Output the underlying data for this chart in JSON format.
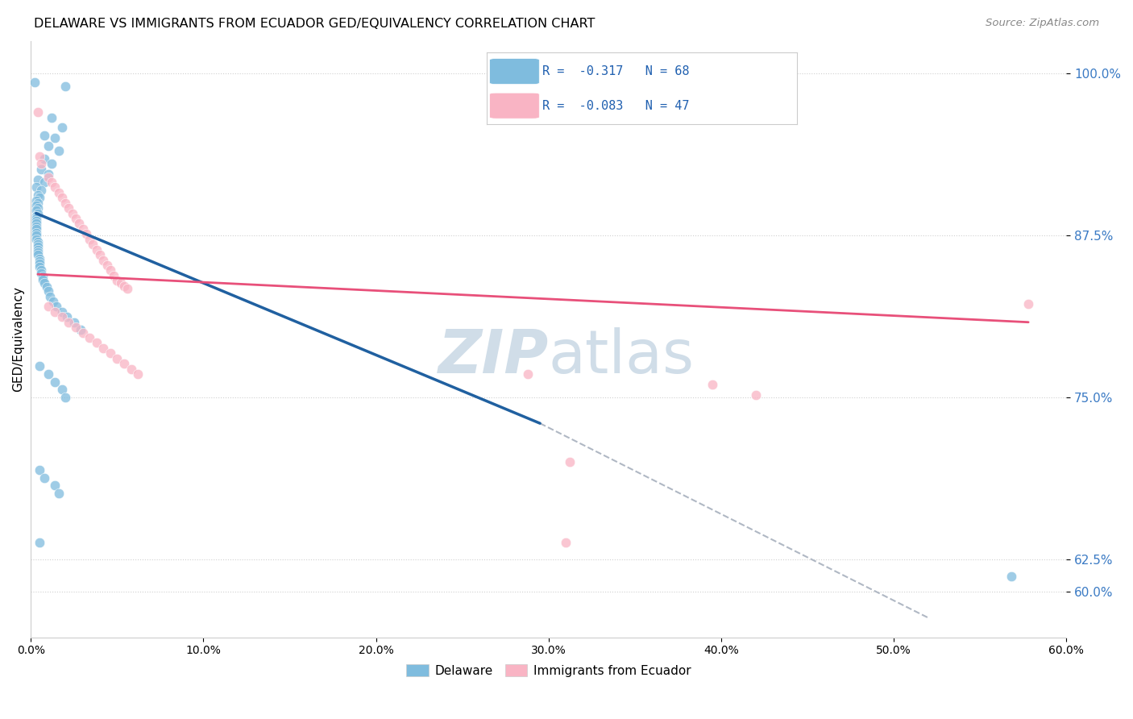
{
  "title": "DELAWARE VS IMMIGRANTS FROM ECUADOR GED/EQUIVALENCY CORRELATION CHART",
  "source": "Source: ZipAtlas.com",
  "ylabel": "GED/Equivalency",
  "ytick_labels": [
    "100.0%",
    "87.5%",
    "75.0%",
    "62.5%",
    "60.0%"
  ],
  "ytick_values": [
    1.0,
    0.875,
    0.75,
    0.625,
    0.6
  ],
  "xlim": [
    0.0,
    0.6
  ],
  "ylim": [
    0.565,
    1.025
  ],
  "blue_color": "#7fbcde",
  "pink_color": "#f9b4c4",
  "blue_line_color": "#2060a0",
  "pink_line_color": "#e8507a",
  "dashed_line_color": "#b0b8c4",
  "watermark_color": "#d0dde8",
  "blue_scatter": [
    [
      0.002,
      0.993
    ],
    [
      0.02,
      0.99
    ],
    [
      0.012,
      0.966
    ],
    [
      0.018,
      0.958
    ],
    [
      0.008,
      0.952
    ],
    [
      0.014,
      0.95
    ],
    [
      0.01,
      0.944
    ],
    [
      0.016,
      0.94
    ],
    [
      0.008,
      0.934
    ],
    [
      0.012,
      0.93
    ],
    [
      0.006,
      0.926
    ],
    [
      0.01,
      0.922
    ],
    [
      0.004,
      0.918
    ],
    [
      0.008,
      0.916
    ],
    [
      0.003,
      0.912
    ],
    [
      0.006,
      0.91
    ],
    [
      0.004,
      0.906
    ],
    [
      0.005,
      0.904
    ],
    [
      0.003,
      0.902
    ],
    [
      0.004,
      0.9
    ],
    [
      0.003,
      0.898
    ],
    [
      0.004,
      0.896
    ],
    [
      0.003,
      0.894
    ],
    [
      0.004,
      0.892
    ],
    [
      0.003,
      0.89
    ],
    [
      0.003,
      0.888
    ],
    [
      0.003,
      0.886
    ],
    [
      0.003,
      0.884
    ],
    [
      0.003,
      0.882
    ],
    [
      0.003,
      0.88
    ],
    [
      0.003,
      0.877
    ],
    [
      0.003,
      0.875
    ],
    [
      0.003,
      0.872
    ],
    [
      0.004,
      0.87
    ],
    [
      0.004,
      0.868
    ],
    [
      0.004,
      0.866
    ],
    [
      0.004,
      0.864
    ],
    [
      0.004,
      0.862
    ],
    [
      0.004,
      0.86
    ],
    [
      0.005,
      0.857
    ],
    [
      0.005,
      0.855
    ],
    [
      0.005,
      0.853
    ],
    [
      0.005,
      0.851
    ],
    [
      0.006,
      0.848
    ],
    [
      0.006,
      0.846
    ],
    [
      0.007,
      0.843
    ],
    [
      0.007,
      0.841
    ],
    [
      0.008,
      0.838
    ],
    [
      0.009,
      0.835
    ],
    [
      0.01,
      0.832
    ],
    [
      0.011,
      0.828
    ],
    [
      0.013,
      0.824
    ],
    [
      0.015,
      0.82
    ],
    [
      0.018,
      0.816
    ],
    [
      0.021,
      0.812
    ],
    [
      0.025,
      0.808
    ],
    [
      0.029,
      0.802
    ],
    [
      0.005,
      0.774
    ],
    [
      0.01,
      0.768
    ],
    [
      0.014,
      0.762
    ],
    [
      0.018,
      0.756
    ],
    [
      0.02,
      0.75
    ],
    [
      0.005,
      0.694
    ],
    [
      0.008,
      0.688
    ],
    [
      0.014,
      0.682
    ],
    [
      0.016,
      0.676
    ],
    [
      0.005,
      0.638
    ],
    [
      0.568,
      0.612
    ]
  ],
  "pink_scatter": [
    [
      0.004,
      0.97
    ],
    [
      0.005,
      0.936
    ],
    [
      0.006,
      0.93
    ],
    [
      0.01,
      0.92
    ],
    [
      0.012,
      0.916
    ],
    [
      0.014,
      0.912
    ],
    [
      0.016,
      0.908
    ],
    [
      0.018,
      0.904
    ],
    [
      0.02,
      0.9
    ],
    [
      0.022,
      0.896
    ],
    [
      0.024,
      0.892
    ],
    [
      0.026,
      0.888
    ],
    [
      0.028,
      0.884
    ],
    [
      0.03,
      0.88
    ],
    [
      0.032,
      0.876
    ],
    [
      0.034,
      0.872
    ],
    [
      0.036,
      0.868
    ],
    [
      0.038,
      0.864
    ],
    [
      0.04,
      0.86
    ],
    [
      0.042,
      0.856
    ],
    [
      0.044,
      0.852
    ],
    [
      0.046,
      0.848
    ],
    [
      0.048,
      0.844
    ],
    [
      0.05,
      0.84
    ],
    [
      0.052,
      0.838
    ],
    [
      0.054,
      0.836
    ],
    [
      0.056,
      0.834
    ],
    [
      0.01,
      0.82
    ],
    [
      0.014,
      0.816
    ],
    [
      0.018,
      0.812
    ],
    [
      0.022,
      0.808
    ],
    [
      0.026,
      0.804
    ],
    [
      0.03,
      0.8
    ],
    [
      0.034,
      0.796
    ],
    [
      0.038,
      0.792
    ],
    [
      0.042,
      0.788
    ],
    [
      0.046,
      0.784
    ],
    [
      0.05,
      0.78
    ],
    [
      0.054,
      0.776
    ],
    [
      0.058,
      0.772
    ],
    [
      0.062,
      0.768
    ],
    [
      0.288,
      0.768
    ],
    [
      0.395,
      0.76
    ],
    [
      0.42,
      0.752
    ],
    [
      0.312,
      0.7
    ],
    [
      0.31,
      0.638
    ],
    [
      0.578,
      0.822
    ]
  ],
  "blue_trend_x": [
    0.003,
    0.295
  ],
  "blue_trend_y": [
    0.892,
    0.73
  ],
  "pink_trend_x": [
    0.004,
    0.578
  ],
  "pink_trend_y": [
    0.845,
    0.808
  ],
  "dashed_trend_x": [
    0.295,
    0.52
  ],
  "dashed_trend_y": [
    0.73,
    0.58
  ],
  "xtick_values": [
    0.0,
    0.1,
    0.2,
    0.3,
    0.4,
    0.5,
    0.6
  ],
  "xtick_labels": [
    "0.0%",
    "10.0%",
    "20.0%",
    "30.0%",
    "40.0%",
    "50.0%",
    "60.0%"
  ]
}
